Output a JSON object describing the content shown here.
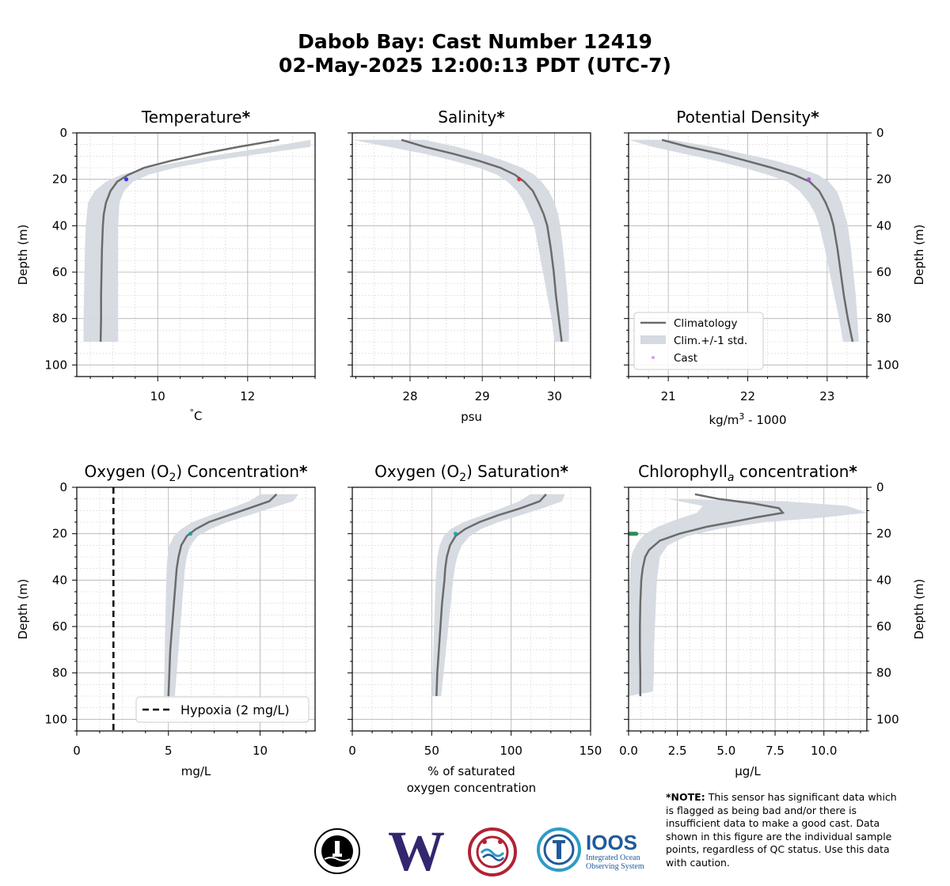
{
  "header": {
    "title_line1": "Dabob Bay:  Cast Number 12419",
    "title_line2": "02-May-2025 12:00:13 PDT (UTC-7)"
  },
  "note": {
    "label": "*NOTE:",
    "text": "This sensor has significant data which is flagged as being bad and/or there is insufficient data to make a good cast. Data shown in this figure are the individual sample points, regardless of QC status. Use this data with caution."
  },
  "logos": {
    "ioos_name": "IOOS",
    "ioos_sub1": "Integrated Ocean",
    "ioos_sub2": "Observing System",
    "uw_letter": "W"
  },
  "colors": {
    "climatology": "#6b6b6b",
    "band": "#d5d9e0",
    "grid_major": "#b0b0b0",
    "grid_minor": "#d6d6d6",
    "uw_purple": "#33266e",
    "ioos_blue": "#1f5a9b",
    "ioos_teal": "#2e9bc6"
  },
  "chart_data": [
    {
      "type": "line",
      "title": "Temperature*",
      "xlabel": "°C",
      "ylabel": "Depth (m)",
      "xlim": [
        8.2,
        13.5
      ],
      "ylim": [
        105,
        0
      ],
      "xticks": [
        10,
        12
      ],
      "yticks": [
        0,
        20,
        40,
        60,
        80,
        100
      ],
      "grid": true,
      "climatology": [
        [
          12.7,
          3
        ],
        [
          11.8,
          6
        ],
        [
          11.0,
          9
        ],
        [
          10.3,
          12
        ],
        [
          9.7,
          15
        ],
        [
          9.35,
          18
        ],
        [
          9.1,
          21
        ],
        [
          8.95,
          25
        ],
        [
          8.85,
          30
        ],
        [
          8.8,
          35
        ],
        [
          8.78,
          40
        ],
        [
          8.76,
          50
        ],
        [
          8.75,
          60
        ],
        [
          8.74,
          70
        ],
        [
          8.74,
          80
        ],
        [
          8.73,
          90
        ]
      ],
      "band_lower": [
        [
          13.4,
          3
        ],
        [
          12.5,
          6
        ],
        [
          11.5,
          9
        ],
        [
          10.6,
          12
        ],
        [
          9.8,
          15
        ],
        [
          9.2,
          18
        ],
        [
          8.85,
          21
        ],
        [
          8.6,
          25
        ],
        [
          8.45,
          30
        ],
        [
          8.4,
          40
        ],
        [
          8.38,
          50
        ],
        [
          8.37,
          60
        ],
        [
          8.36,
          70
        ],
        [
          8.35,
          80
        ],
        [
          8.35,
          90
        ]
      ],
      "band_upper": [
        [
          13.4,
          3
        ],
        [
          13.4,
          6
        ],
        [
          12.3,
          9
        ],
        [
          11.2,
          12
        ],
        [
          10.4,
          15
        ],
        [
          9.8,
          18
        ],
        [
          9.45,
          21
        ],
        [
          9.25,
          25
        ],
        [
          9.15,
          30
        ],
        [
          9.12,
          40
        ],
        [
          9.12,
          50
        ],
        [
          9.12,
          60
        ],
        [
          9.12,
          70
        ],
        [
          9.12,
          80
        ],
        [
          9.12,
          90
        ]
      ],
      "cast_points": [
        [
          9.3,
          20
        ]
      ],
      "cast_color": "#1f1fe0"
    },
    {
      "type": "line",
      "title": "Salinity*",
      "xlabel": "psu",
      "ylabel": "",
      "xlim": [
        27.2,
        30.5
      ],
      "ylim": [
        105,
        0
      ],
      "xticks": [
        28,
        29,
        30
      ],
      "yticks": [
        0,
        20,
        40,
        60,
        80,
        100
      ],
      "grid": true,
      "climatology": [
        [
          27.88,
          3
        ],
        [
          28.2,
          6
        ],
        [
          28.6,
          9
        ],
        [
          28.95,
          12
        ],
        [
          29.25,
          15
        ],
        [
          29.45,
          18
        ],
        [
          29.58,
          21
        ],
        [
          29.7,
          25
        ],
        [
          29.78,
          30
        ],
        [
          29.85,
          35
        ],
        [
          29.9,
          40
        ],
        [
          29.95,
          50
        ],
        [
          29.99,
          60
        ],
        [
          30.02,
          70
        ],
        [
          30.06,
          80
        ],
        [
          30.1,
          90
        ]
      ],
      "band_lower": [
        [
          27.2,
          3
        ],
        [
          27.7,
          6
        ],
        [
          28.2,
          9
        ],
        [
          28.6,
          12
        ],
        [
          28.95,
          15
        ],
        [
          29.2,
          18
        ],
        [
          29.35,
          21
        ],
        [
          29.48,
          25
        ],
        [
          29.58,
          30
        ],
        [
          29.65,
          35
        ],
        [
          29.72,
          40
        ],
        [
          29.78,
          50
        ],
        [
          29.84,
          60
        ],
        [
          29.9,
          70
        ],
        [
          29.96,
          80
        ],
        [
          30.0,
          90
        ]
      ],
      "band_upper": [
        [
          28.2,
          3
        ],
        [
          28.65,
          6
        ],
        [
          29.0,
          9
        ],
        [
          29.3,
          12
        ],
        [
          29.55,
          15
        ],
        [
          29.72,
          18
        ],
        [
          29.82,
          21
        ],
        [
          29.92,
          25
        ],
        [
          30.0,
          30
        ],
        [
          30.05,
          35
        ],
        [
          30.08,
          40
        ],
        [
          30.12,
          50
        ],
        [
          30.15,
          60
        ],
        [
          30.18,
          70
        ],
        [
          30.2,
          80
        ],
        [
          30.2,
          90
        ]
      ],
      "cast_points": [
        [
          29.51,
          20
        ]
      ],
      "cast_color": "#d62020"
    },
    {
      "type": "line",
      "title": "Potential Density*",
      "xlabel": "kg/m3 - 1000",
      "ylabel": "Depth (m)",
      "xlim": [
        20.5,
        23.5
      ],
      "ylim": [
        105,
        0
      ],
      "xticks": [
        21,
        22,
        23
      ],
      "yticks": [
        0,
        20,
        40,
        60,
        80,
        100
      ],
      "grid": true,
      "legend": [
        "Climatology",
        "Clim.+/-1 std.",
        "Cast"
      ],
      "legend_loc": "lower left",
      "climatology": [
        [
          20.92,
          3
        ],
        [
          21.25,
          6
        ],
        [
          21.65,
          9
        ],
        [
          21.98,
          12
        ],
        [
          22.3,
          15
        ],
        [
          22.58,
          18
        ],
        [
          22.78,
          21
        ],
        [
          22.9,
          25
        ],
        [
          22.98,
          30
        ],
        [
          23.04,
          35
        ],
        [
          23.08,
          40
        ],
        [
          23.13,
          50
        ],
        [
          23.17,
          60
        ],
        [
          23.21,
          70
        ],
        [
          23.26,
          80
        ],
        [
          23.32,
          90
        ]
      ],
      "band_lower": [
        [
          20.5,
          3
        ],
        [
          20.8,
          6
        ],
        [
          21.2,
          9
        ],
        [
          21.6,
          12
        ],
        [
          21.95,
          15
        ],
        [
          22.25,
          18
        ],
        [
          22.5,
          21
        ],
        [
          22.65,
          25
        ],
        [
          22.77,
          30
        ],
        [
          22.85,
          35
        ],
        [
          22.9,
          40
        ],
        [
          22.97,
          50
        ],
        [
          23.03,
          60
        ],
        [
          23.09,
          70
        ],
        [
          23.15,
          80
        ],
        [
          23.2,
          90
        ]
      ],
      "band_upper": [
        [
          21.05,
          3
        ],
        [
          21.55,
          6
        ],
        [
          21.95,
          9
        ],
        [
          22.35,
          12
        ],
        [
          22.65,
          15
        ],
        [
          22.88,
          18
        ],
        [
          23.02,
          21
        ],
        [
          23.12,
          25
        ],
        [
          23.18,
          30
        ],
        [
          23.22,
          35
        ],
        [
          23.26,
          40
        ],
        [
          23.3,
          50
        ],
        [
          23.33,
          60
        ],
        [
          23.36,
          70
        ],
        [
          23.38,
          80
        ],
        [
          23.4,
          90
        ]
      ],
      "cast_points": [
        [
          22.77,
          20
        ]
      ],
      "cast_color": "#b04cd8"
    },
    {
      "type": "line",
      "title": "Oxygen (O2) Concentration*",
      "xlabel": "mg/L",
      "ylabel": "Depth (m)",
      "xlim": [
        0,
        13
      ],
      "ylim": [
        105,
        0
      ],
      "xticks": [
        0,
        5,
        10
      ],
      "yticks": [
        0,
        20,
        40,
        60,
        80,
        100
      ],
      "grid": true,
      "legend": [
        "Hypoxia (2 mg/L)"
      ],
      "legend_loc": "lower right",
      "reference_line": 2,
      "climatology": [
        [
          10.9,
          3
        ],
        [
          10.5,
          6
        ],
        [
          9.4,
          9
        ],
        [
          8.3,
          12
        ],
        [
          7.2,
          15
        ],
        [
          6.5,
          18
        ],
        [
          6.0,
          21
        ],
        [
          5.7,
          25
        ],
        [
          5.55,
          30
        ],
        [
          5.45,
          35
        ],
        [
          5.4,
          40
        ],
        [
          5.3,
          50
        ],
        [
          5.2,
          60
        ],
        [
          5.1,
          70
        ],
        [
          5.05,
          80
        ],
        [
          5.0,
          90
        ]
      ],
      "band_lower": [
        [
          10.0,
          3
        ],
        [
          9.4,
          6
        ],
        [
          8.4,
          9
        ],
        [
          7.3,
          12
        ],
        [
          6.3,
          15
        ],
        [
          5.7,
          18
        ],
        [
          5.3,
          21
        ],
        [
          5.05,
          25
        ],
        [
          4.95,
          30
        ],
        [
          4.9,
          35
        ],
        [
          4.88,
          40
        ],
        [
          4.85,
          50
        ],
        [
          4.82,
          60
        ],
        [
          4.8,
          70
        ],
        [
          4.78,
          80
        ],
        [
          4.75,
          90
        ]
      ],
      "band_upper": [
        [
          12.1,
          3
        ],
        [
          11.8,
          6
        ],
        [
          10.6,
          9
        ],
        [
          9.4,
          12
        ],
        [
          8.2,
          15
        ],
        [
          7.3,
          18
        ],
        [
          6.6,
          21
        ],
        [
          6.2,
          25
        ],
        [
          6.0,
          30
        ],
        [
          5.9,
          35
        ],
        [
          5.85,
          40
        ],
        [
          5.75,
          50
        ],
        [
          5.65,
          60
        ],
        [
          5.55,
          70
        ],
        [
          5.45,
          80
        ],
        [
          5.35,
          90
        ]
      ],
      "cast_points": [
        [
          6.2,
          20
        ]
      ],
      "cast_color": "#10a0a0"
    },
    {
      "type": "line",
      "title": "Oxygen (O2) Saturation*",
      "xlabel": "% of saturated oxygen concentration",
      "ylabel": "",
      "xlim": [
        0,
        150
      ],
      "ylim": [
        105,
        0
      ],
      "xticks": [
        0,
        50,
        100,
        150
      ],
      "yticks": [
        0,
        20,
        40,
        60,
        80,
        100
      ],
      "grid": true,
      "climatology": [
        [
          122,
          3
        ],
        [
          118,
          6
        ],
        [
          106,
          9
        ],
        [
          92,
          12
        ],
        [
          80,
          15
        ],
        [
          71,
          18
        ],
        [
          65,
          21
        ],
        [
          61.5,
          25
        ],
        [
          59.5,
          30
        ],
        [
          58.5,
          35
        ],
        [
          58,
          40
        ],
        [
          56.5,
          50
        ],
        [
          55.5,
          60
        ],
        [
          54.5,
          70
        ],
        [
          53.5,
          80
        ],
        [
          53,
          90
        ]
      ],
      "band_lower": [
        [
          112,
          3
        ],
        [
          105,
          6
        ],
        [
          94,
          9
        ],
        [
          82,
          12
        ],
        [
          70,
          15
        ],
        [
          62,
          18
        ],
        [
          57.5,
          21
        ],
        [
          55,
          25
        ],
        [
          53.5,
          30
        ],
        [
          53,
          35
        ],
        [
          52.5,
          40
        ],
        [
          52,
          50
        ],
        [
          51.5,
          60
        ],
        [
          51,
          70
        ],
        [
          50.5,
          80
        ],
        [
          50,
          90
        ]
      ],
      "band_upper": [
        [
          134,
          3
        ],
        [
          132,
          6
        ],
        [
          120,
          9
        ],
        [
          106,
          12
        ],
        [
          92,
          15
        ],
        [
          81,
          18
        ],
        [
          74,
          21
        ],
        [
          69,
          25
        ],
        [
          66,
          30
        ],
        [
          64.5,
          35
        ],
        [
          63.5,
          40
        ],
        [
          62,
          50
        ],
        [
          60.5,
          60
        ],
        [
          59,
          70
        ],
        [
          57.5,
          80
        ],
        [
          56,
          90
        ]
      ],
      "cast_points": [
        [
          65,
          20
        ]
      ],
      "cast_color": "#10a0a0"
    },
    {
      "type": "line",
      "title": "Chlorophylla concentration*",
      "xlabel": "μg/L",
      "ylabel": "Depth (m)",
      "xlim": [
        0,
        12.2
      ],
      "ylim": [
        105,
        0
      ],
      "xticks": [
        0.0,
        2.5,
        5.0,
        7.5,
        10.0
      ],
      "yticks": [
        0,
        20,
        40,
        60,
        80,
        100
      ],
      "grid": true,
      "climatology": [
        [
          3.4,
          3
        ],
        [
          4.6,
          5
        ],
        [
          6.4,
          7
        ],
        [
          7.7,
          9
        ],
        [
          7.9,
          11
        ],
        [
          6.5,
          13
        ],
        [
          5.3,
          15
        ],
        [
          4.0,
          17
        ],
        [
          2.6,
          20
        ],
        [
          1.6,
          23
        ],
        [
          1.05,
          27
        ],
        [
          0.85,
          30
        ],
        [
          0.72,
          35
        ],
        [
          0.65,
          40
        ],
        [
          0.6,
          50
        ],
        [
          0.58,
          60
        ],
        [
          0.58,
          70
        ],
        [
          0.6,
          80
        ],
        [
          0.6,
          90
        ]
      ],
      "band_lower": [
        [
          2.0,
          5
        ],
        [
          3.8,
          8
        ],
        [
          3.5,
          11
        ],
        [
          2.4,
          14
        ],
        [
          1.5,
          17
        ],
        [
          0.85,
          20
        ],
        [
          0.45,
          24
        ],
        [
          0.2,
          28
        ],
        [
          0.1,
          32
        ],
        [
          0.05,
          40
        ],
        [
          0.02,
          50
        ],
        [
          0.0,
          60
        ],
        [
          0.0,
          70
        ],
        [
          0.0,
          80
        ],
        [
          0.0,
          90
        ]
      ],
      "band_upper": [
        [
          2.2,
          5
        ],
        [
          8.0,
          6
        ],
        [
          11.2,
          8
        ],
        [
          12.2,
          11
        ],
        [
          10.0,
          13
        ],
        [
          7.0,
          15
        ],
        [
          4.6,
          18
        ],
        [
          3.0,
          21
        ],
        [
          2.0,
          25
        ],
        [
          1.6,
          30
        ],
        [
          1.45,
          40
        ],
        [
          1.4,
          50
        ],
        [
          1.35,
          60
        ],
        [
          1.3,
          70
        ],
        [
          1.3,
          80
        ],
        [
          1.25,
          88
        ]
      ],
      "cast_points": [
        [
          0.05,
          20
        ],
        [
          0.1,
          20
        ],
        [
          0.15,
          20
        ],
        [
          0.2,
          20
        ],
        [
          0.25,
          20
        ],
        [
          0.3,
          20
        ],
        [
          0.35,
          20
        ],
        [
          0.4,
          20
        ]
      ],
      "cast_color": "#2e8b57"
    }
  ]
}
